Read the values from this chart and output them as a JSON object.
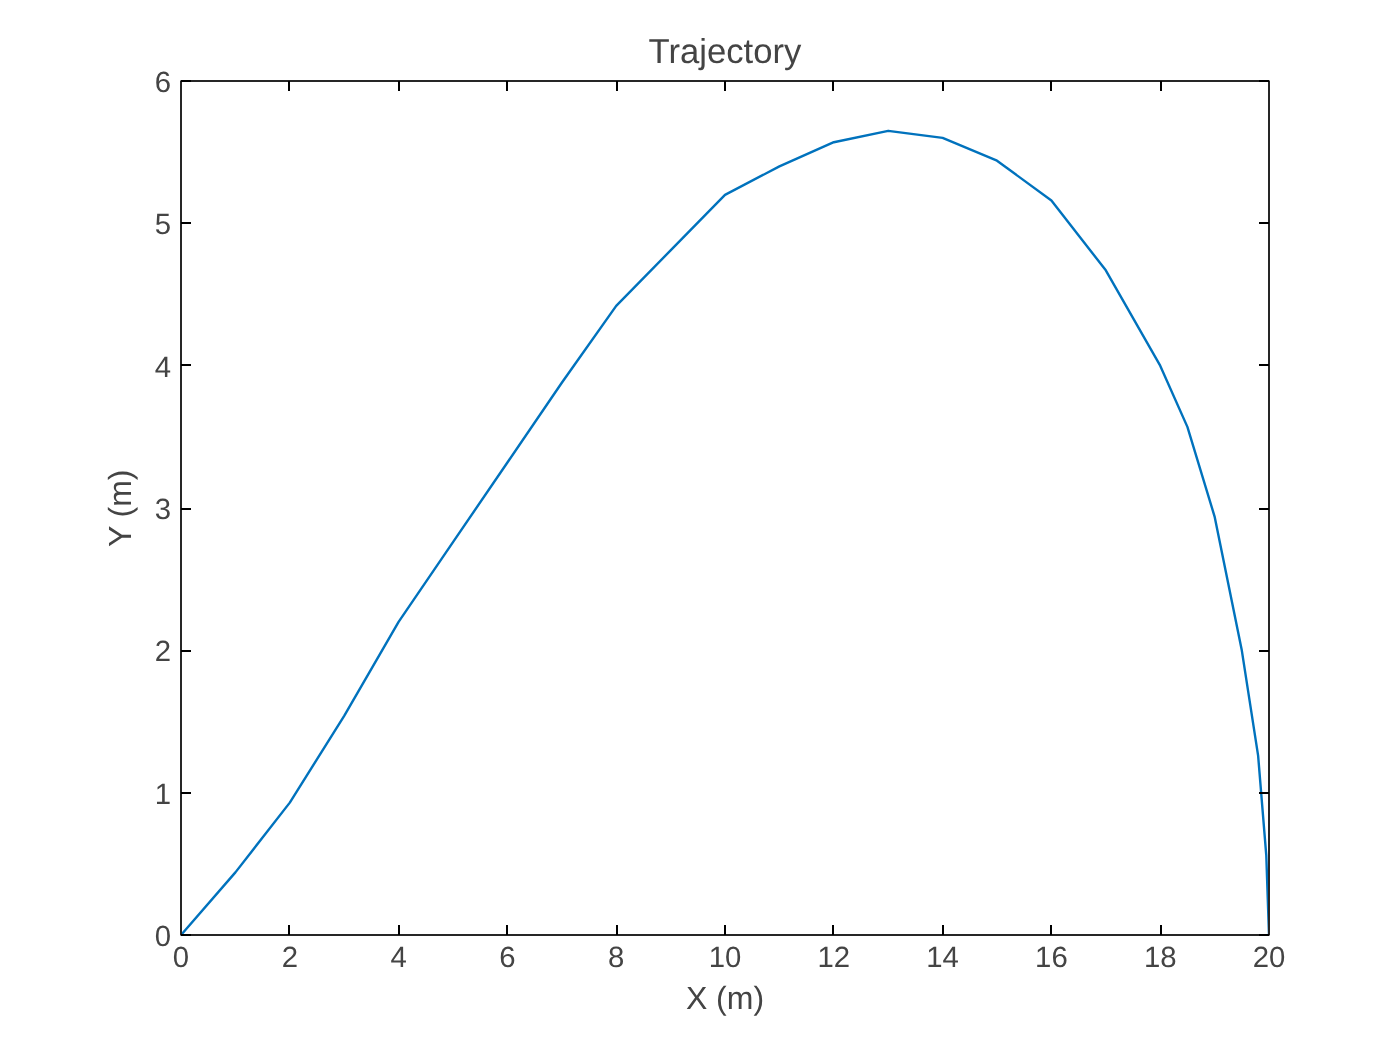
{
  "chart_data": {
    "type": "line",
    "title": "Trajectory",
    "xlabel": "X (m)",
    "ylabel": "Y (m)",
    "x": [
      0,
      1,
      2,
      3,
      4,
      5,
      6,
      7,
      8,
      9,
      10,
      11,
      12,
      13,
      14,
      15,
      16,
      17,
      18,
      18.5,
      19,
      19.5,
      19.8,
      19.95,
      20
    ],
    "series": [
      {
        "color": "#0072bd",
        "values": [
          0,
          0.44,
          0.93,
          1.54,
          2.2,
          2.76,
          3.32,
          3.88,
          4.42,
          4.81,
          5.2,
          5.4,
          5.57,
          5.65,
          5.6,
          5.44,
          5.16,
          4.67,
          4.0,
          3.57,
          2.94,
          2.0,
          1.26,
          0.56,
          0
        ]
      }
    ],
    "xlim": [
      0,
      20
    ],
    "ylim": [
      0,
      6
    ],
    "xticks": [
      0,
      2,
      4,
      6,
      8,
      10,
      12,
      14,
      16,
      18,
      20
    ],
    "yticks": [
      0,
      1,
      2,
      3,
      4,
      5,
      6
    ],
    "grid": false,
    "marker": "none",
    "line_style": "solid"
  }
}
